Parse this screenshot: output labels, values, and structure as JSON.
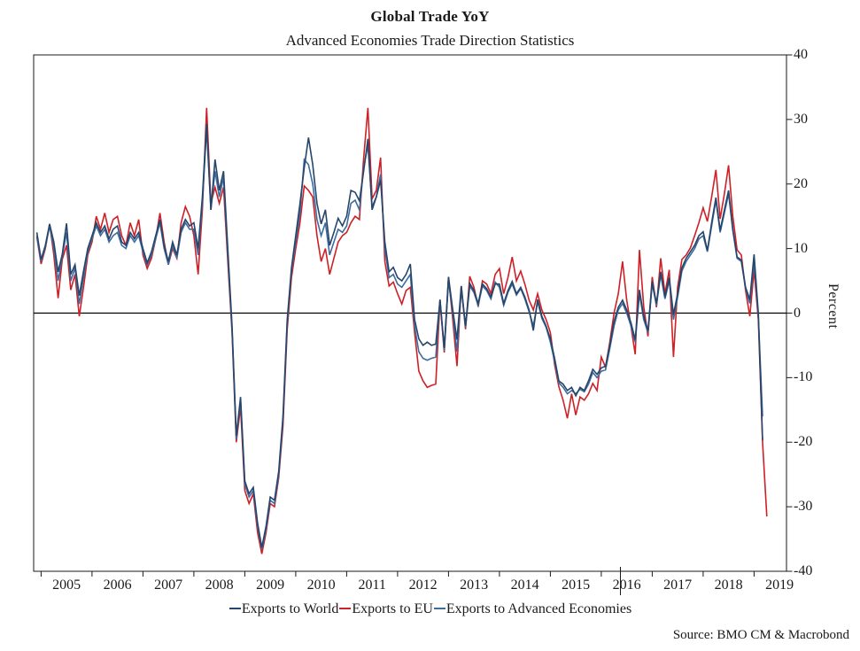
{
  "page": {
    "title": "Global Trade YoY",
    "subtitle": "Advanced Economies Trade Direction Statistics",
    "source": "Source: BMO CM & Macrobond"
  },
  "legend": {
    "items": [
      {
        "label": "Exports to World",
        "color": "#25456A"
      },
      {
        "label": "Exports to EU",
        "color": "#CD2027"
      },
      {
        "label": "Exports to Advanced Economies",
        "color": "#3E6C9E"
      }
    ]
  },
  "chart_data": {
    "type": "line",
    "title": "Global Trade YoY",
    "subtitle": "Advanced Economies Trade Direction Statistics",
    "ylabel": "Percent",
    "ylim": [
      -40,
      40
    ],
    "y_ticks": [
      40,
      30,
      20,
      10,
      0,
      -10,
      -20,
      -30,
      -40
    ],
    "x_tick_years": [
      "2005",
      "2006",
      "2007",
      "2008",
      "2009",
      "2010",
      "2011",
      "2012",
      "2013",
      "2014",
      "2015",
      "2016",
      "2017",
      "2018",
      "2019"
    ],
    "x_start": "2004-12",
    "x_step_months": 1,
    "grid": "zero-line-only",
    "legend_position": "bottom",
    "axis_color": "#1a1a1a",
    "series": [
      {
        "name": "Exports to EU",
        "color": "#CD2027",
        "values": [
          11.8,
          7.6,
          10.0,
          13.8,
          9.0,
          2.3,
          8.3,
          10.5,
          3.6,
          6.0,
          -0.5,
          4.0,
          9.0,
          11.0,
          15.0,
          13.0,
          15.5,
          12.5,
          14.5,
          15.0,
          12.0,
          10.5,
          14.0,
          12.0,
          14.5,
          9.0,
          6.9,
          8.5,
          11.5,
          15.5,
          11.0,
          7.5,
          10.0,
          8.5,
          14.0,
          16.5,
          15.0,
          12.0,
          6.0,
          16.0,
          31.8,
          17.0,
          19.5,
          17.0,
          19.5,
          8.0,
          -3.0,
          -20.0,
          -14.5,
          -27.5,
          -29.5,
          -28.0,
          -34.0,
          -37.3,
          -34.0,
          -29.5,
          -30.0,
          -25.5,
          -17.5,
          -2.5,
          5.5,
          10.0,
          14.0,
          19.7,
          19.0,
          18.0,
          12.0,
          8.0,
          10.0,
          6.0,
          8.5,
          11.0,
          12.0,
          12.5,
          14.0,
          15.0,
          14.5,
          24.0,
          31.8,
          17.7,
          19.0,
          24.1,
          8.0,
          4.2,
          4.8,
          3.0,
          1.4,
          3.5,
          4.0,
          -3.0,
          -9.0,
          -10.5,
          -11.5,
          -11.2,
          -11.0,
          2.0,
          -6.1,
          5.6,
          -1.0,
          -8.2,
          4.2,
          -2.5,
          5.7,
          4.0,
          1.0,
          5.0,
          4.5,
          3.0,
          6.0,
          6.9,
          3.0,
          5.5,
          8.7,
          5.0,
          6.5,
          4.5,
          2.0,
          0.5,
          3.0,
          0.5,
          -1.0,
          -3.0,
          -8.0,
          -11.4,
          -13.5,
          -16.3,
          -12.5,
          -15.8,
          -13.0,
          -13.5,
          -12.5,
          -10.9,
          -12.0,
          -6.8,
          -8.4,
          -4.5,
          0.0,
          3.0,
          8.0,
          2.0,
          -2.0,
          -6.4,
          9.8,
          1.0,
          -3.6,
          5.6,
          0.9,
          8.5,
          3.0,
          6.7,
          -6.8,
          4.0,
          8.3,
          9.0,
          10.1,
          12.0,
          14.0,
          16.3,
          14.2,
          18.0,
          22.2,
          14.6,
          18.5,
          22.9,
          15.0,
          9.8,
          9.0,
          3.5,
          -0.5,
          6.7,
          -1.0,
          -20.0,
          -31.5
        ]
      },
      {
        "name": "Exports to Advanced Economies",
        "color": "#3E6C9E",
        "values": [
          12.0,
          8.0,
          10.2,
          13.5,
          10.0,
          5.0,
          8.8,
          12.5,
          5.0,
          7.0,
          1.4,
          5.5,
          9.5,
          11.5,
          13.5,
          12.0,
          13.0,
          11.0,
          12.0,
          12.5,
          10.5,
          10.0,
          12.0,
          11.0,
          12.0,
          9.5,
          7.5,
          9.0,
          11.5,
          14.0,
          10.0,
          7.5,
          10.5,
          8.5,
          12.5,
          14.0,
          13.0,
          13.0,
          9.0,
          17.0,
          28.6,
          16.0,
          22.0,
          18.0,
          21.0,
          9.0,
          -2.5,
          -19.5,
          -13.5,
          -26.5,
          -28.5,
          -27.5,
          -33.0,
          -36.6,
          -33.5,
          -29.0,
          -29.5,
          -25.0,
          -16.5,
          -1.5,
          6.5,
          11.0,
          15.5,
          23.8,
          23.0,
          20.0,
          14.5,
          12.0,
          14.0,
          9.0,
          11.0,
          13.0,
          12.5,
          13.5,
          17.0,
          17.5,
          16.0,
          22.5,
          26.0,
          16.5,
          18.0,
          21.5,
          10.0,
          5.5,
          6.0,
          4.5,
          4.0,
          5.0,
          6.0,
          -2.0,
          -6.0,
          -7.0,
          -7.3,
          -7.0,
          -6.8,
          2.0,
          -5.8,
          5.0,
          0.0,
          -6.0,
          3.8,
          -2.2,
          4.2,
          3.2,
          1.2,
          4.2,
          3.5,
          2.2,
          4.8,
          4.0,
          1.2,
          3.2,
          4.5,
          2.8,
          3.8,
          2.2,
          0.2,
          -2.0,
          1.8,
          -0.8,
          -2.2,
          -4.5,
          -7.5,
          -10.8,
          -11.5,
          -12.5,
          -12.0,
          -12.5,
          -11.8,
          -12.2,
          -11.0,
          -9.2,
          -10.0,
          -9.0,
          -8.8,
          -5.5,
          -2.0,
          0.5,
          1.5,
          0.0,
          -2.0,
          -4.5,
          3.0,
          -1.0,
          -3.0,
          4.5,
          1.2,
          6.0,
          2.2,
          5.0,
          -1.0,
          2.5,
          6.5,
          8.0,
          9.0,
          10.0,
          11.5,
          12.0,
          9.5,
          13.5,
          17.5,
          12.5,
          15.5,
          18.5,
          12.8,
          8.5,
          8.0,
          3.8,
          1.5,
          8.0,
          -0.5,
          -16.0,
          null
        ]
      },
      {
        "name": "Exports to World",
        "color": "#25456A",
        "values": [
          12.5,
          8.3,
          10.5,
          13.8,
          11.0,
          6.4,
          9.1,
          13.9,
          6.0,
          7.5,
          2.7,
          6.5,
          10.0,
          12.0,
          14.0,
          12.5,
          13.5,
          11.5,
          13.0,
          13.5,
          11.0,
          10.5,
          12.5,
          11.5,
          12.5,
          10.0,
          7.8,
          9.5,
          12.0,
          14.5,
          10.5,
          8.0,
          11.0,
          9.0,
          13.0,
          14.5,
          13.5,
          14.0,
          10.0,
          18.0,
          29.3,
          16.0,
          23.8,
          19.0,
          22.0,
          10.0,
          -2.0,
          -19.0,
          -13.0,
          -26.0,
          -28.0,
          -27.0,
          -32.5,
          -36.3,
          -33.0,
          -28.5,
          -29.0,
          -24.5,
          -16.0,
          -1.0,
          7.0,
          12.0,
          17.0,
          22.5,
          27.2,
          23.0,
          17.0,
          13.8,
          16.0,
          10.5,
          12.5,
          14.7,
          13.5,
          15.0,
          19.0,
          18.7,
          17.4,
          22.0,
          27.0,
          16.0,
          18.0,
          20.6,
          11.0,
          6.4,
          7.1,
          5.5,
          5.0,
          6.0,
          7.6,
          -1.0,
          -4.0,
          -5.0,
          -4.5,
          -5.0,
          -4.8,
          2.1,
          -5.4,
          5.6,
          0.5,
          -4.1,
          4.2,
          -2.0,
          4.6,
          3.5,
          1.5,
          4.5,
          3.8,
          2.5,
          4.5,
          4.5,
          1.5,
          3.5,
          4.9,
          3.0,
          4.0,
          2.5,
          0.5,
          -2.7,
          2.1,
          -0.5,
          -2.0,
          -4.0,
          -7.0,
          -10.5,
          -11.0,
          -12.0,
          -11.5,
          -12.8,
          -11.5,
          -12.0,
          -10.5,
          -8.7,
          -9.5,
          -8.5,
          -8.2,
          -5.0,
          -1.3,
          0.9,
          2.0,
          0.5,
          -1.5,
          -4.1,
          3.6,
          -0.5,
          -2.7,
          4.9,
          1.5,
          6.4,
          2.5,
          5.5,
          -0.2,
          3.0,
          7.0,
          8.5,
          9.5,
          10.5,
          12.0,
          12.6,
          9.7,
          14.0,
          17.9,
          12.8,
          16.0,
          19.0,
          13.0,
          8.7,
          8.2,
          4.0,
          2.1,
          9.1,
          0.0,
          -19.7,
          null
        ]
      }
    ]
  }
}
